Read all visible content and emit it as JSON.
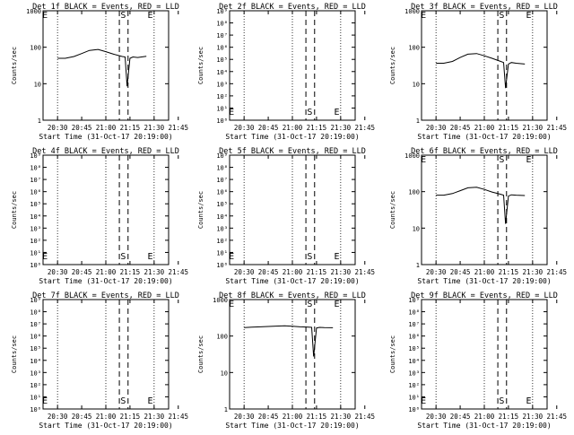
{
  "chart_data": [
    {
      "type": "line",
      "title": "Det 1f BLACK = Events, RED = LLD",
      "ylabel": "Counts/sec",
      "xlabel": "Start Time (31-Oct-17 20:19:00)",
      "xticks": [
        "20:30",
        "20:45",
        "21:00",
        "21:15",
        "21:30",
        "21:45"
      ],
      "yscale": "log",
      "yticks": [
        "1",
        "10",
        "100",
        "1000"
      ],
      "ylim": [
        1,
        1200
      ],
      "markers": [
        {
          "label": "E"
        },
        {
          "label": "S"
        },
        {
          "label": "E"
        }
      ],
      "series": [
        {
          "x": [
            20.5,
            20.58,
            20.67,
            20.75,
            20.83,
            20.92,
            21.0,
            21.08,
            21.17,
            21.2,
            21.22,
            21.25,
            21.28,
            21.33,
            21.42
          ],
          "values": [
            55,
            55,
            62,
            75,
            92,
            98,
            85,
            72,
            62,
            60,
            9,
            55,
            60,
            58,
            63
          ]
        }
      ]
    },
    {
      "type": "line",
      "title": "Det 2f BLACK = Events, RED = LLD",
      "ylabel": "Counts/sec",
      "xlabel": "Start Time (31-Oct-17 20:19:00)",
      "xticks": [
        "20:30",
        "20:45",
        "21:00",
        "21:15",
        "21:30",
        "21:45"
      ],
      "yscale": "log",
      "yticks": [
        "10⁰",
        "10¹",
        "10²",
        "10³",
        "10⁴",
        "10⁵",
        "10⁶",
        "10⁷",
        "10⁸",
        "10⁹"
      ],
      "markers": [
        {
          "label": "E"
        },
        {
          "label": "S"
        },
        {
          "label": "E"
        }
      ],
      "series": []
    },
    {
      "type": "line",
      "title": "Det 3f BLACK = Events, RED = LLD",
      "ylabel": "Counts/sec",
      "xlabel": "Start Time (31-Oct-17 20:19:00)",
      "xticks": [
        "20:30",
        "20:45",
        "21:00",
        "21:15",
        "21:30",
        "21:45"
      ],
      "yscale": "log",
      "yticks": [
        "1",
        "10",
        "100",
        "1000"
      ],
      "ylim": [
        1,
        1200
      ],
      "markers": [
        {
          "label": "E"
        },
        {
          "label": "S"
        },
        {
          "label": "E"
        }
      ],
      "series": [
        {
          "x": [
            20.5,
            20.58,
            20.67,
            20.75,
            20.83,
            20.92,
            21.0,
            21.08,
            21.17,
            21.2,
            21.22,
            21.25,
            21.28,
            21.33,
            21.42
          ],
          "values": [
            40,
            40,
            45,
            58,
            72,
            75,
            65,
            55,
            45,
            42,
            8,
            38,
            42,
            40,
            38
          ]
        }
      ]
    },
    {
      "type": "line",
      "title": "Det 4f BLACK = Events, RED = LLD",
      "ylabel": "Counts/sec",
      "xlabel": "Start Time (31-Oct-17 20:19:00)",
      "xticks": [
        "20:30",
        "20:45",
        "21:00",
        "21:15",
        "21:30",
        "21:45"
      ],
      "yscale": "log",
      "yticks": [
        "10⁰",
        "10¹",
        "10²",
        "10³",
        "10⁴",
        "10⁵",
        "10⁶",
        "10⁷",
        "10⁸",
        "10⁹"
      ],
      "markers": [
        {
          "label": "E"
        },
        {
          "label": "S"
        },
        {
          "label": "E"
        }
      ],
      "series": []
    },
    {
      "type": "line",
      "title": "Det 5f BLACK = Events, RED = LLD",
      "ylabel": "Counts/sec",
      "xlabel": "Start Time (31-Oct-17 20:19:00)",
      "xticks": [
        "20:30",
        "20:45",
        "21:00",
        "21:15",
        "21:30",
        "21:45"
      ],
      "yscale": "log",
      "yticks": [
        "10⁰",
        "10¹",
        "10²",
        "10³",
        "10⁴",
        "10⁵",
        "10⁶",
        "10⁷",
        "10⁸",
        "10⁹"
      ],
      "markers": [
        {
          "label": "E"
        },
        {
          "label": "S"
        },
        {
          "label": "E"
        }
      ],
      "series": []
    },
    {
      "type": "line",
      "title": "Det 6f BLACK = Events, RED = LLD",
      "ylabel": "Counts/sec",
      "xlabel": "Start Time (31-Oct-17 20:19:00)",
      "xticks": [
        "20:30",
        "20:45",
        "21:00",
        "21:15",
        "21:30",
        "21:45"
      ],
      "yscale": "log",
      "yticks": [
        "1",
        "10",
        "100",
        "1000"
      ],
      "ylim": [
        1,
        1200
      ],
      "markers": [
        {
          "label": "E"
        },
        {
          "label": "S"
        },
        {
          "label": "E"
        }
      ],
      "series": [
        {
          "x": [
            20.5,
            20.58,
            20.67,
            20.75,
            20.83,
            20.92,
            21.0,
            21.08,
            21.17,
            21.2,
            21.22,
            21.25,
            21.28,
            21.33,
            21.42
          ],
          "values": [
            90,
            90,
            100,
            120,
            145,
            150,
            130,
            110,
            95,
            90,
            14,
            85,
            92,
            90,
            88
          ]
        }
      ]
    },
    {
      "type": "line",
      "title": "Det 7f BLACK = Events, RED = LLD",
      "ylabel": "Counts/sec",
      "xlabel": "Start Time (31-Oct-17 20:19:00)",
      "xticks": [
        "20:30",
        "20:45",
        "21:00",
        "21:15",
        "21:30",
        "21:45"
      ],
      "yscale": "log",
      "yticks": [
        "10⁰",
        "10¹",
        "10²",
        "10³",
        "10⁴",
        "10⁵",
        "10⁶",
        "10⁷",
        "10⁸",
        "10⁹"
      ],
      "markers": [
        {
          "label": "E"
        },
        {
          "label": "S"
        },
        {
          "label": "E"
        }
      ],
      "series": []
    },
    {
      "type": "line",
      "title": "Det 8f BLACK = Events, RED = LLD",
      "ylabel": "Counts/sec",
      "xlabel": "Start Time (31-Oct-17 20:19:00)",
      "xticks": [
        "20:30",
        "20:45",
        "21:00",
        "21:15",
        "21:30",
        "21:45"
      ],
      "yscale": "log",
      "yticks": [
        "1",
        "10",
        "100",
        "1000"
      ],
      "ylim": [
        1,
        1200
      ],
      "markers": [
        {
          "label": "E"
        },
        {
          "label": "S"
        },
        {
          "label": "E"
        }
      ],
      "series": [
        {
          "x": [
            20.5,
            20.58,
            20.67,
            20.75,
            20.83,
            20.92,
            21.0,
            21.08,
            21.17,
            21.2,
            21.22,
            21.25,
            21.28,
            21.33,
            21.42
          ],
          "values": [
            195,
            200,
            205,
            210,
            215,
            218,
            212,
            205,
            200,
            198,
            30,
            190,
            198,
            195,
            193
          ]
        }
      ]
    },
    {
      "type": "line",
      "title": "Det 9f BLACK = Events, RED = LLD",
      "ylabel": "Counts/sec",
      "xlabel": "Start Time (31-Oct-17 20:19:00)",
      "xticks": [
        "20:30",
        "20:45",
        "21:00",
        "21:15",
        "21:30",
        "21:45"
      ],
      "yscale": "log",
      "yticks": [
        "10⁰",
        "10¹",
        "10²",
        "10³",
        "10⁴",
        "10⁵",
        "10⁶",
        "10⁷",
        "10⁸",
        "10⁹"
      ],
      "markers": [
        {
          "label": "E"
        },
        {
          "label": "S"
        },
        {
          "label": "E"
        }
      ],
      "series": []
    }
  ]
}
